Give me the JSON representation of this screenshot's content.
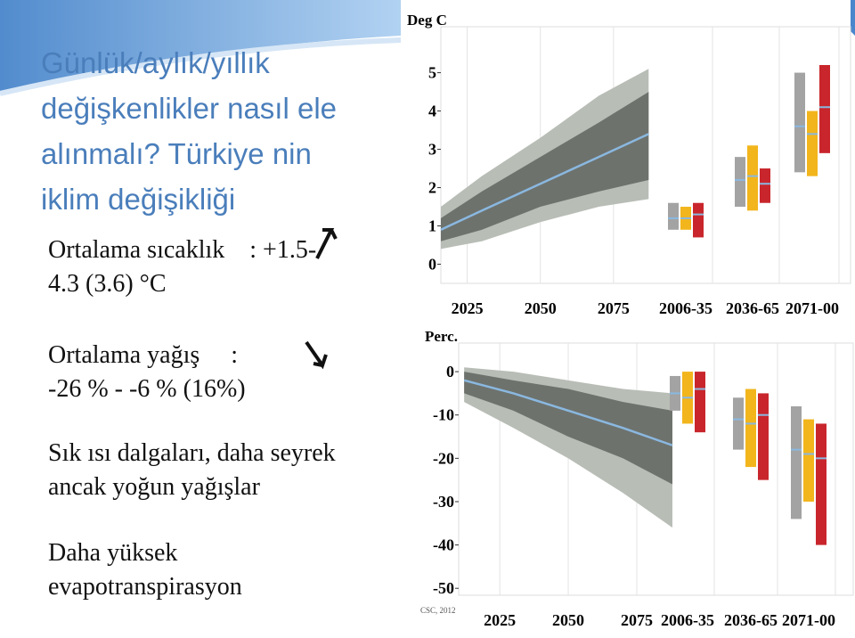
{
  "title_lines": [
    "Günlük/aylık/yıllık",
    "değişkenlikler nasıl ele",
    "alınmalı? Türkiye nin",
    "iklim değişikliği"
  ],
  "bullets": [
    {
      "lines": [
        "Ortalama sıcaklık    : +1.5-",
        "4.3 (3.6) °C"
      ]
    },
    {
      "lines": [
        "Ortalama yağış     :",
        "-26 % - -6 % (16%)"
      ]
    },
    {
      "lines": [
        "Sık ısı dalgaları, daha seyrek",
        "ancak yoğun yağışlar"
      ]
    },
    {
      "lines": [
        "Daha yüksek",
        "evapotranspirasyon"
      ]
    }
  ],
  "chart_data": [
    {
      "type": "fan",
      "y_label": "Deg C",
      "ylim": [
        -0.5,
        6.2
      ],
      "yticks": [
        0,
        1,
        2,
        3,
        4,
        5
      ],
      "xlim": [
        2016,
        2156
      ],
      "xticks": [
        2025,
        2050,
        2075
      ],
      "period_labels": [
        "2006-35",
        "2036-65",
        "2071-00"
      ],
      "fan": {
        "x": [
          2016,
          2030,
          2050,
          2070,
          2087
        ],
        "median": [
          0.9,
          1.4,
          2.1,
          2.8,
          3.4
        ],
        "inner_low": [
          0.6,
          0.9,
          1.5,
          1.9,
          2.2
        ],
        "inner_high": [
          1.2,
          1.9,
          2.8,
          3.7,
          4.5
        ],
        "outer_low": [
          0.4,
          0.6,
          1.1,
          1.5,
          1.7
        ],
        "outer_high": [
          1.5,
          2.3,
          3.3,
          4.4,
          5.1
        ]
      },
      "box_colors": [
        "#a3a3a3",
        "#f2b51c",
        "#c8262c"
      ],
      "fan_colors": [
        "#b8bdb6",
        "#6e726d",
        "#8ab8e0"
      ],
      "periods": [
        [
          {
            "low": 0.9,
            "high": 1.6,
            "mid": 1.2
          },
          {
            "low": 0.9,
            "high": 1.5,
            "mid": 1.2
          },
          {
            "low": 0.7,
            "high": 1.6,
            "mid": 1.3
          }
        ],
        [
          {
            "low": 1.5,
            "high": 2.8,
            "mid": 2.2
          },
          {
            "low": 1.4,
            "high": 3.1,
            "mid": 2.3
          },
          {
            "low": 1.6,
            "high": 2.5,
            "mid": 2.1
          }
        ],
        [
          {
            "low": 2.4,
            "high": 5.0,
            "mid": 3.6
          },
          {
            "low": 2.3,
            "high": 4.0,
            "mid": 3.4
          },
          {
            "low": 2.9,
            "high": 5.2,
            "mid": 4.1
          }
        ]
      ]
    },
    {
      "type": "fan",
      "y_label": "Perc.",
      "ylim": [
        -51.6,
        6.6
      ],
      "yticks": [
        0,
        -10,
        -20,
        -30,
        -40,
        -50
      ],
      "xlim": [
        2010,
        2154
      ],
      "xticks": [
        2025,
        2050,
        2075
      ],
      "period_labels": [
        "2006-35",
        "2036-65",
        "2071-00"
      ],
      "source": "CSC, 2012",
      "fan": {
        "x": [
          2012,
          2030,
          2050,
          2070,
          2088
        ],
        "median": [
          -2,
          -5,
          -9,
          -13,
          -17
        ],
        "inner_low": [
          -5,
          -9,
          -15,
          -20,
          -26
        ],
        "inner_high": [
          0,
          -2,
          -4,
          -7,
          -9
        ],
        "outer_low": [
          -7,
          -13,
          -20,
          -28,
          -36
        ],
        "outer_high": [
          1,
          0,
          -2,
          -4,
          -5
        ]
      },
      "box_colors": [
        "#a3a3a3",
        "#f2b51c",
        "#c8262c"
      ],
      "fan_colors": [
        "#b8bdb6",
        "#6e726d",
        "#8ab8e0"
      ],
      "periods": [
        [
          {
            "low": -9,
            "high": -1,
            "mid": -5
          },
          {
            "low": -12,
            "high": 0,
            "mid": -6
          },
          {
            "low": -14,
            "high": 0,
            "mid": -4
          }
        ],
        [
          {
            "low": -18,
            "high": -6,
            "mid": -11
          },
          {
            "low": -22,
            "high": -4,
            "mid": -12
          },
          {
            "low": -25,
            "high": -5,
            "mid": -10
          }
        ],
        [
          {
            "low": -34,
            "high": -8,
            "mid": -18
          },
          {
            "low": -30,
            "high": -11,
            "mid": -19
          },
          {
            "low": -40,
            "high": -12,
            "mid": -20
          }
        ]
      ]
    }
  ]
}
